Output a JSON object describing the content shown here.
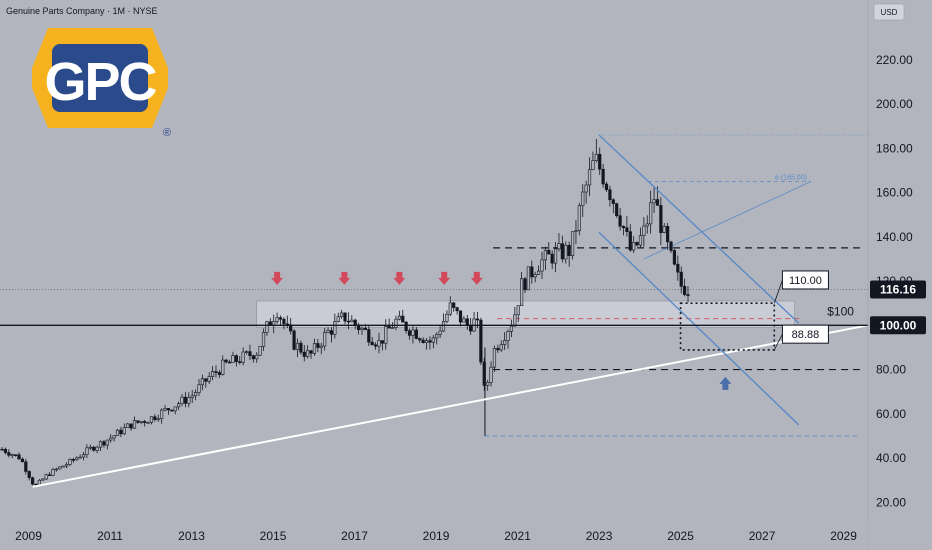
{
  "header": {
    "title": "Genuine Parts Company · 1M · NYSE",
    "currency": "USD"
  },
  "logo": {
    "text": "GPC",
    "registered": "®",
    "color_primary": "#2a4a8c",
    "color_accent": "#f5b21e"
  },
  "colors": {
    "background": "#b2b5be",
    "candle": "#131722",
    "arrow_down": "#d1495b",
    "arrow_up": "#4a6ea8",
    "trend_line": "#ffffff",
    "channel_line": "#5a8ac6",
    "dashed_level": "#131722",
    "price_badge_bg": "#131722",
    "price_badge_text": "#ffffff"
  },
  "chart_data": {
    "type": "candlestick",
    "title": "Genuine Parts Company · 1M · NYSE",
    "x_range": [
      2008.3,
      2029.6
    ],
    "y_range": [
      12,
      238
    ],
    "x_ticks": [
      "2009",
      "2011",
      "2013",
      "2015",
      "2017",
      "2019",
      "2021",
      "2023",
      "2025",
      "2027",
      "2029"
    ],
    "y_ticks": [
      "220.00",
      "200.00",
      "180.00",
      "160.00",
      "140.00",
      "120.00",
      "100.00",
      "80.00",
      "60.00",
      "40.00",
      "20.00"
    ],
    "y_tick_values": [
      220,
      200,
      180,
      160,
      140,
      120,
      100,
      80,
      60,
      40,
      20
    ],
    "price_path": [
      [
        2008.35,
        44
      ],
      [
        2008.8,
        40
      ],
      [
        2009.15,
        27
      ],
      [
        2009.5,
        33
      ],
      [
        2010.0,
        38
      ],
      [
        2010.5,
        44
      ],
      [
        2011.0,
        49
      ],
      [
        2011.5,
        55
      ],
      [
        2012.0,
        58
      ],
      [
        2012.5,
        63
      ],
      [
        2013.0,
        68
      ],
      [
        2013.4,
        76
      ],
      [
        2013.8,
        82
      ],
      [
        2014.2,
        85
      ],
      [
        2014.6,
        88
      ],
      [
        2014.9,
        101
      ],
      [
        2015.1,
        107
      ],
      [
        2015.5,
        92
      ],
      [
        2015.9,
        86
      ],
      [
        2016.3,
        96
      ],
      [
        2016.75,
        104
      ],
      [
        2017.2,
        98
      ],
      [
        2017.6,
        92
      ],
      [
        2018.0,
        102
      ],
      [
        2018.5,
        97
      ],
      [
        2018.9,
        92
      ],
      [
        2019.35,
        108
      ],
      [
        2019.75,
        100
      ],
      [
        2020.0,
        102
      ],
      [
        2020.2,
        68
      ],
      [
        2020.4,
        88
      ],
      [
        2020.7,
        97
      ],
      [
        2020.9,
        103
      ],
      [
        2021.1,
        118
      ],
      [
        2021.5,
        128
      ],
      [
        2021.9,
        132
      ],
      [
        2022.3,
        134
      ],
      [
        2022.6,
        158
      ],
      [
        2022.9,
        175
      ],
      [
        2023.1,
        168
      ],
      [
        2023.5,
        150
      ],
      [
        2023.8,
        132
      ],
      [
        2024.1,
        142
      ],
      [
        2024.35,
        158
      ],
      [
        2024.6,
        140
      ],
      [
        2024.85,
        125
      ],
      [
        2025.0,
        118
      ],
      [
        2025.25,
        116
      ]
    ],
    "last_price": "116.16",
    "current_level": "100.00",
    "annotations": {
      "resistance_zone": [
        99,
        111
      ],
      "upper_dashed_level": 135,
      "lower_dashed_level": 80,
      "support_dashed_level": 50,
      "label_110": "110.00",
      "label_8888": "88.88",
      "label_100": "$100",
      "target_small": "e (165.00)",
      "target_level": 165,
      "box": {
        "x0": 2025.0,
        "x1": 2027.3,
        "y0": 88.88,
        "y1": 110
      }
    },
    "trend_line": [
      [
        2009.1,
        27
      ],
      [
        2029.6,
        100
      ]
    ],
    "channel": {
      "upper": [
        [
          2023.0,
          186
        ],
        [
          2027.9,
          101
        ]
      ],
      "lower": [
        [
          2023.0,
          142
        ],
        [
          2027.9,
          55
        ]
      ]
    },
    "down_arrows_x": [
      2015.1,
      2016.75,
      2018.1,
      2019.2,
      2020.0
    ],
    "up_arrow_x": 2026.1
  }
}
